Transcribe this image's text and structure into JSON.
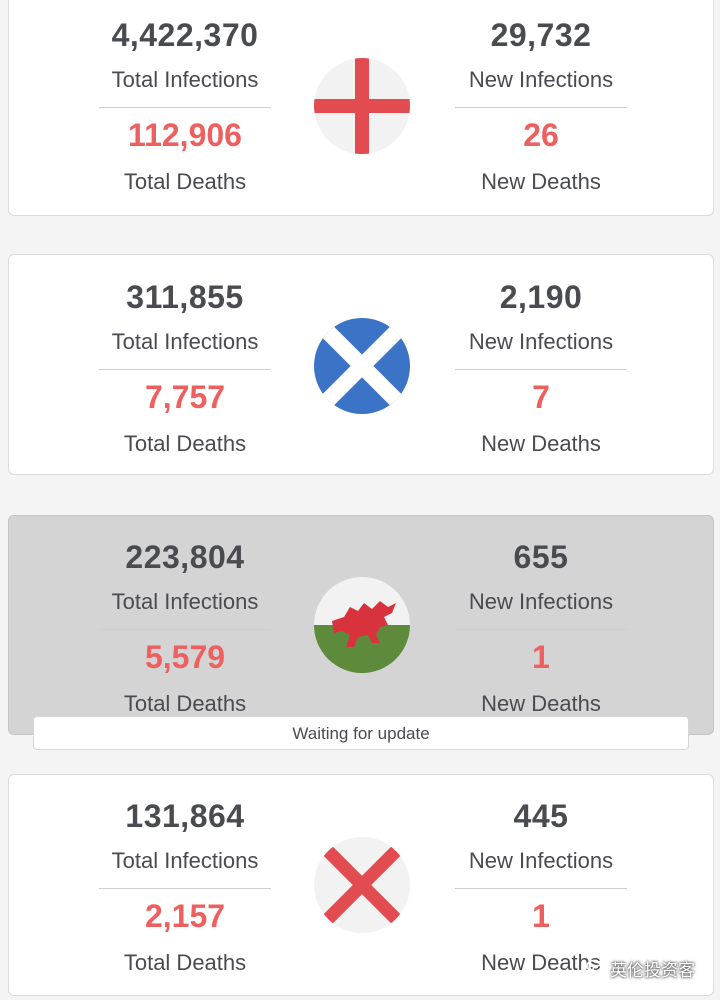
{
  "cards": [
    {
      "flag": "england-flag",
      "total_infections": "4,422,370",
      "total_infections_label": "Total Infections",
      "total_deaths": "112,906",
      "total_deaths_label": "Total Deaths",
      "new_infections": "29,732",
      "new_infections_label": "New Infections",
      "new_deaths": "26",
      "new_deaths_label": "New Deaths"
    },
    {
      "flag": "scotland-flag",
      "total_infections": "311,855",
      "total_infections_label": "Total Infections",
      "total_deaths": "7,757",
      "total_deaths_label": "Total Deaths",
      "new_infections": "2,190",
      "new_infections_label": "New Infections",
      "new_deaths": "7",
      "new_deaths_label": "New Deaths"
    },
    {
      "flag": "wales-flag",
      "total_infections": "223,804",
      "total_infections_label": "Total Infections",
      "total_deaths": "5,579",
      "total_deaths_label": "Total Deaths",
      "new_infections": "655",
      "new_infections_label": "New Infections",
      "new_deaths": "1",
      "new_deaths_label": "New Deaths",
      "status": "Waiting for update"
    },
    {
      "flag": "northern-ireland-saltire-flag",
      "total_infections": "131,864",
      "total_infections_label": "Total Infections",
      "total_deaths": "2,157",
      "total_deaths_label": "Total Deaths",
      "new_infections": "445",
      "new_infections_label": "New Infections",
      "new_deaths": "1",
      "new_deaths_label": "New Deaths"
    }
  ],
  "watermark": "英伦投资客",
  "colors": {
    "number_dark": "#4a4b50",
    "number_red": "#ee5f5f",
    "card_bg": "#ffffff",
    "card_pending_bg": "#d4d4d4",
    "page_bg": "#f4f4f5"
  }
}
